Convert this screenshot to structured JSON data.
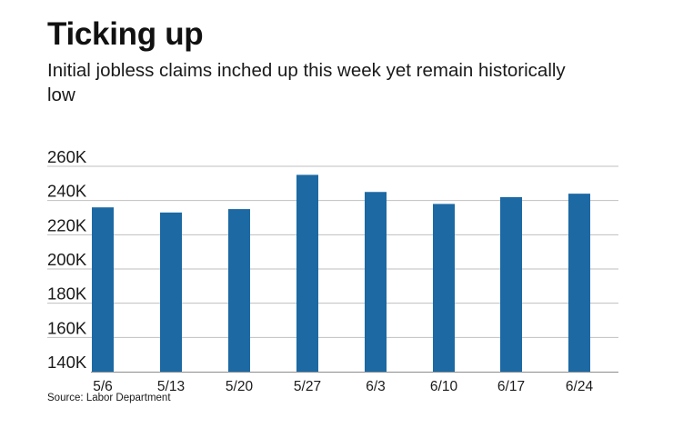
{
  "header": {
    "title": "Ticking up",
    "subtitle": "Initial jobless claims inched up this week yet remain historically low"
  },
  "footer": {
    "source": "Source: Labor Department"
  },
  "colors": {
    "bar": "#1c69a4",
    "gridline": "#bfbfbf",
    "axis": "#8c8c8c"
  },
  "chart_data": {
    "type": "bar",
    "title": "Ticking up",
    "subtitle": "Initial jobless claims inched up this week yet remain historically low",
    "xlabel": "",
    "ylabel": "",
    "categories": [
      "5/6",
      "5/13",
      "5/20",
      "5/27",
      "6/3",
      "6/10",
      "6/17",
      "6/24"
    ],
    "values": [
      236000,
      233000,
      235000,
      255000,
      245000,
      238000,
      242000,
      244000
    ],
    "ylim": [
      140000,
      260000
    ],
    "yticks": [
      140000,
      160000,
      180000,
      200000,
      220000,
      240000,
      260000
    ],
    "ytick_labels": [
      "140K",
      "160K",
      "180K",
      "200K",
      "220K",
      "240K",
      "260K"
    ],
    "grid": true,
    "legend": "none"
  }
}
